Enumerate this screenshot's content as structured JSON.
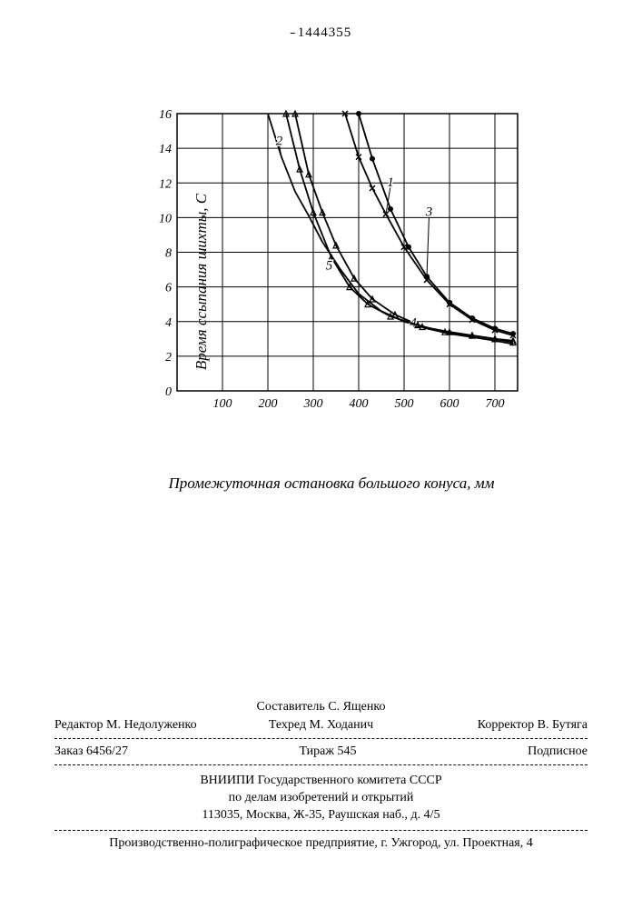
{
  "header": {
    "patent_number": "1444355"
  },
  "chart": {
    "type": "line",
    "xlabel": "Промежуточная остановка большого конуса, мм",
    "ylabel": "Время ссыпания шихты, С",
    "xlim": [
      0,
      750
    ],
    "ylim": [
      0,
      16
    ],
    "xtick_labels": [
      "100",
      "200",
      "300",
      "400",
      "500",
      "600",
      "700"
    ],
    "ytick_labels": [
      "0",
      "2",
      "4",
      "6",
      "8",
      "10",
      "12",
      "14",
      "16"
    ],
    "background_color": "#ffffff",
    "grid_color": "#000000",
    "line_color": "#000000",
    "line_width": 1.8,
    "marker_size": 3,
    "label_fontsize": 17,
    "tick_fontsize": 14,
    "series": [
      {
        "id": "1",
        "label": "1",
        "label_at": [
          470,
          11.8
        ],
        "points": [
          [
            370,
            16
          ],
          [
            400,
            13.5
          ],
          [
            430,
            11.7
          ],
          [
            460,
            10.2
          ],
          [
            500,
            8.3
          ],
          [
            550,
            6.4
          ],
          [
            600,
            5.0
          ],
          [
            650,
            4.1
          ],
          [
            700,
            3.5
          ],
          [
            740,
            3.2
          ]
        ],
        "marker": "x"
      },
      {
        "id": "2",
        "label": "2",
        "label_at": [
          225,
          14.2
        ],
        "points": [
          [
            200,
            16
          ],
          [
            230,
            13.5
          ],
          [
            260,
            11.5
          ],
          [
            290,
            10.1
          ],
          [
            320,
            8.6
          ],
          [
            360,
            7.0
          ],
          [
            400,
            5.6
          ],
          [
            450,
            4.6
          ],
          [
            500,
            4.0
          ],
          [
            550,
            3.6
          ],
          [
            600,
            3.3
          ],
          [
            650,
            3.1
          ],
          [
            700,
            2.9
          ],
          [
            740,
            2.7
          ]
        ],
        "marker": "none"
      },
      {
        "id": "3",
        "label": "3",
        "label_at": [
          555,
          10.1
        ],
        "points": [
          [
            400,
            16
          ],
          [
            430,
            13.4
          ],
          [
            470,
            10.5
          ],
          [
            510,
            8.3
          ],
          [
            550,
            6.6
          ],
          [
            600,
            5.1
          ],
          [
            650,
            4.2
          ],
          [
            700,
            3.6
          ],
          [
            740,
            3.3
          ]
        ],
        "marker": "dot"
      },
      {
        "id": "4",
        "label": "4",
        "label_at": [
          520,
          3.7
        ],
        "points": [
          [
            260,
            16
          ],
          [
            290,
            12.5
          ],
          [
            320,
            10.3
          ],
          [
            350,
            8.4
          ],
          [
            390,
            6.5
          ],
          [
            430,
            5.3
          ],
          [
            480,
            4.4
          ],
          [
            540,
            3.7
          ],
          [
            600,
            3.4
          ],
          [
            650,
            3.2
          ],
          [
            700,
            3.0
          ],
          [
            740,
            2.9
          ]
        ],
        "marker": "triangle"
      },
      {
        "id": "5",
        "label": "5",
        "label_at": [
          335,
          7.0
        ],
        "points": [
          [
            240,
            16
          ],
          [
            270,
            12.8
          ],
          [
            300,
            10.3
          ],
          [
            340,
            7.7
          ],
          [
            380,
            6.0
          ],
          [
            420,
            5.0
          ],
          [
            470,
            4.3
          ],
          [
            530,
            3.8
          ],
          [
            590,
            3.4
          ],
          [
            650,
            3.2
          ],
          [
            700,
            3.0
          ],
          [
            740,
            2.8
          ]
        ],
        "marker": "triangle"
      }
    ]
  },
  "footer": {
    "compiler": "Составитель С. Ященко",
    "editor": "Редактор М. Недолуженко",
    "techred": "Техред М. Ходанич",
    "corrector": "Корректор В. Бутяга",
    "order": "Заказ 6456/27",
    "tirazh": "Тираж 545",
    "subscription": "Подписное",
    "publisher1": "ВНИИПИ Государственного комитета СССР",
    "publisher2": "по делам изобретений и открытий",
    "publisher3": "113035, Москва, Ж-35, Раушская наб., д. 4/5",
    "production": "Производственно-полиграфическое предприятие, г. Ужгород, ул. Проектная, 4"
  }
}
